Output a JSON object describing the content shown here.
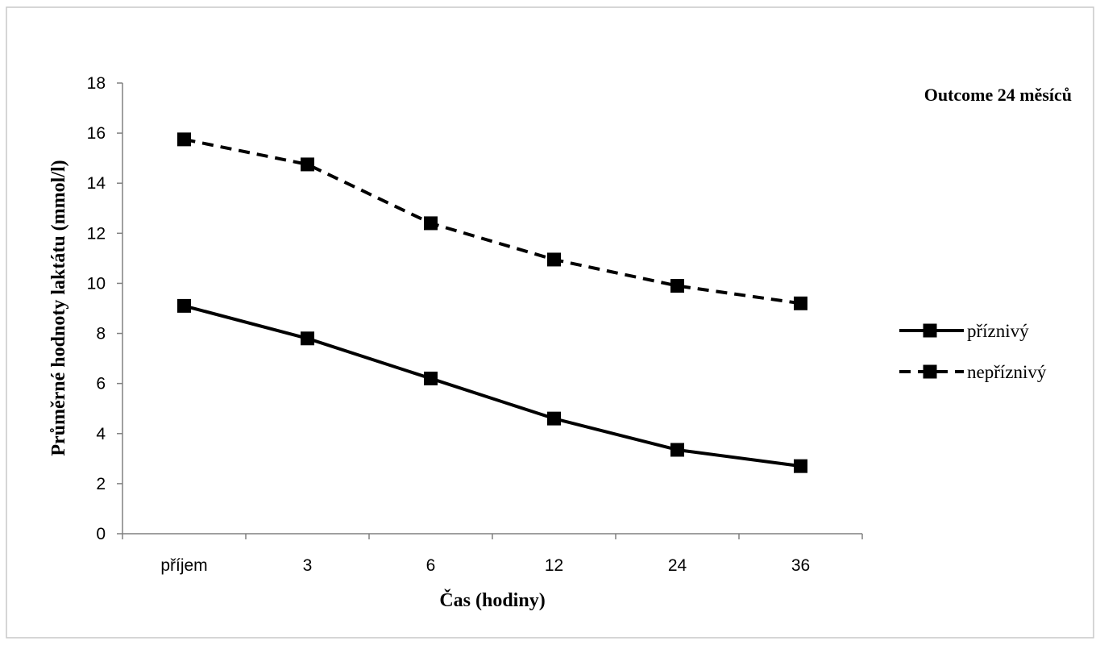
{
  "chart_data": {
    "type": "line",
    "title": "Outcome 24 měsíců",
    "xlabel": "Čas (hodiny)",
    "ylabel": "Průměrné hodnoty laktátu (mmol/l)",
    "categories": [
      "příjem",
      "3",
      "6",
      "12",
      "24",
      "36"
    ],
    "y_ticks": [
      0,
      2,
      4,
      6,
      8,
      10,
      12,
      14,
      16,
      18
    ],
    "ylim": [
      0,
      18
    ],
    "grid": false,
    "legend_position": "right",
    "series": [
      {
        "name": "příznivý",
        "values": [
          9.1,
          7.8,
          6.2,
          4.6,
          3.35,
          2.7
        ],
        "line_style": "solid",
        "marker": "square",
        "color": "#000000"
      },
      {
        "name": "nepříznivý",
        "values": [
          15.75,
          14.75,
          12.4,
          10.95,
          9.9,
          9.2
        ],
        "line_style": "dashed",
        "marker": "square",
        "color": "#000000"
      }
    ]
  }
}
